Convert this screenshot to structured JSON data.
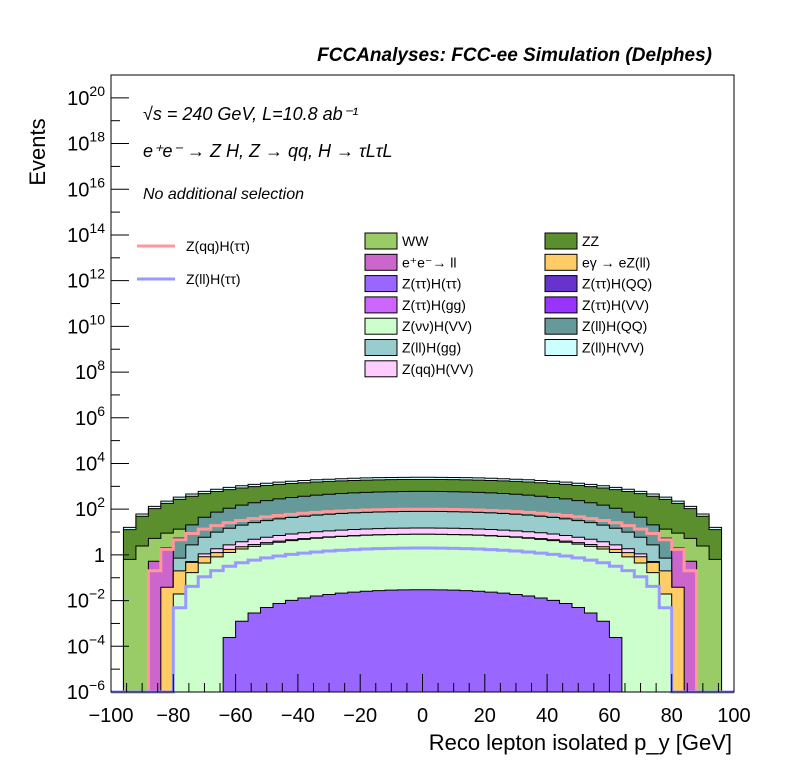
{
  "title": "FCCAnalyses: FCC-ee Simulation (Delphes)",
  "annotations": {
    "energy": "√s = 240 GeV, L=10.8 ab⁻¹",
    "process": "e⁺e⁻ → Z H, Z → qq, H → τLτL",
    "selection": "No additional selection"
  },
  "chart_data": {
    "type": "histogram-stacked",
    "title": "FCCAnalyses: FCC-ee Simulation (Delphes)",
    "xlabel": "Reco lepton isolated p_y [GeV]",
    "ylabel": "Events",
    "xlim": [
      -100,
      100
    ],
    "ylim": [
      1e-06,
      1e+21
    ],
    "y_scale": "log",
    "x_ticks": [
      "−100",
      "−80",
      "−60",
      "−40",
      "−20",
      "0",
      "20",
      "40",
      "60",
      "80",
      "100"
    ],
    "y_ticks": [
      {
        "base": "10",
        "exp": "−6",
        "value": 1e-06
      },
      {
        "base": "10",
        "exp": "−4",
        "value": 0.0001
      },
      {
        "base": "10",
        "exp": "−2",
        "value": 0.01
      },
      {
        "base": "1",
        "exp": "",
        "value": 1
      },
      {
        "base": "10",
        "exp": "2",
        "value": 100.0
      },
      {
        "base": "10",
        "exp": "4",
        "value": 10000.0
      },
      {
        "base": "10",
        "exp": "6",
        "value": 1000000.0
      },
      {
        "base": "10",
        "exp": "8",
        "value": 100000000.0
      },
      {
        "base": "10",
        "exp": "10",
        "value": 10000000000.0
      },
      {
        "base": "10",
        "exp": "12",
        "value": 1000000000000.0
      },
      {
        "base": "10",
        "exp": "14",
        "value": 100000000000000.0
      },
      {
        "base": "10",
        "exp": "16",
        "value": 1e+16
      },
      {
        "base": "10",
        "exp": "18",
        "value": 1e+18
      },
      {
        "base": "10",
        "exp": "20",
        "value": 1e+20
      }
    ],
    "stack_layers": [
      {
        "name": "Z(ll)H(VV)",
        "color": "#ccffff",
        "peak": 2500,
        "xmax": 98
      },
      {
        "name": "ZZ",
        "color": "#5b8f2e",
        "peak": 2000,
        "xmax": 98
      },
      {
        "name": "WW",
        "color": "#99cc66",
        "peak": 100,
        "xmax": 98
      },
      {
        "name": "e⁺e⁻→ ll",
        "color": "#cc66cc",
        "peak": 70,
        "xmax": 90
      },
      {
        "name": "Z(ll)H(QQ)",
        "color": "#669999",
        "peak": 600,
        "xmax": 82
      },
      {
        "name": "Z(ll)H(gg)",
        "color": "#99cccc",
        "peak": 80,
        "xmax": 82
      },
      {
        "name": "Z(qq)H(VV)",
        "color": "#ffccff",
        "peak": 15,
        "xmax": 82
      },
      {
        "name": "eγ → eZ(ll)",
        "color": "#ffcc66",
        "peak": 8,
        "xmax": 85
      },
      {
        "name": "Z(ττ)H(QQ)",
        "color": "#6633cc",
        "peak": 3,
        "xmax": 78
      },
      {
        "name": "Z(ττ)H(VV)",
        "color": "#9933ff",
        "peak": 0.6,
        "xmax": 78
      },
      {
        "name": "Z(ττ)H(gg)",
        "color": "#cc66ff",
        "peak": 1,
        "xmax": 78
      },
      {
        "name": "Z(νν)H(VV)",
        "color": "#ccffcc",
        "peak": 8,
        "xmax": 80
      },
      {
        "name": "Z(ττ)H(ττ)",
        "color": "#9966ff",
        "peak": 0.03,
        "xmax": 65
      }
    ],
    "signal_lines": [
      {
        "name": "Z(qq)H(ττ)",
        "color": "#ff9999",
        "peak": 100,
        "xmax": 88
      },
      {
        "name": "Z(ll)H(ττ)",
        "color": "#9999ff",
        "peak": 2,
        "xmax": 80
      }
    ],
    "legend_columns": [
      [
        "WW",
        "e⁺e⁻→ ll",
        "Z(ττ)H(ττ)",
        "Z(ττ)H(gg)",
        "Z(νν)H(VV)",
        "Z(ll)H(gg)",
        "Z(qq)H(VV)"
      ],
      [
        "ZZ",
        "eγ → eZ(ll)",
        "Z(ττ)H(QQ)",
        "Z(ττ)H(VV)",
        "Z(ll)H(QQ)",
        "Z(ll)H(VV)"
      ]
    ],
    "legend_placement": "top-center"
  }
}
